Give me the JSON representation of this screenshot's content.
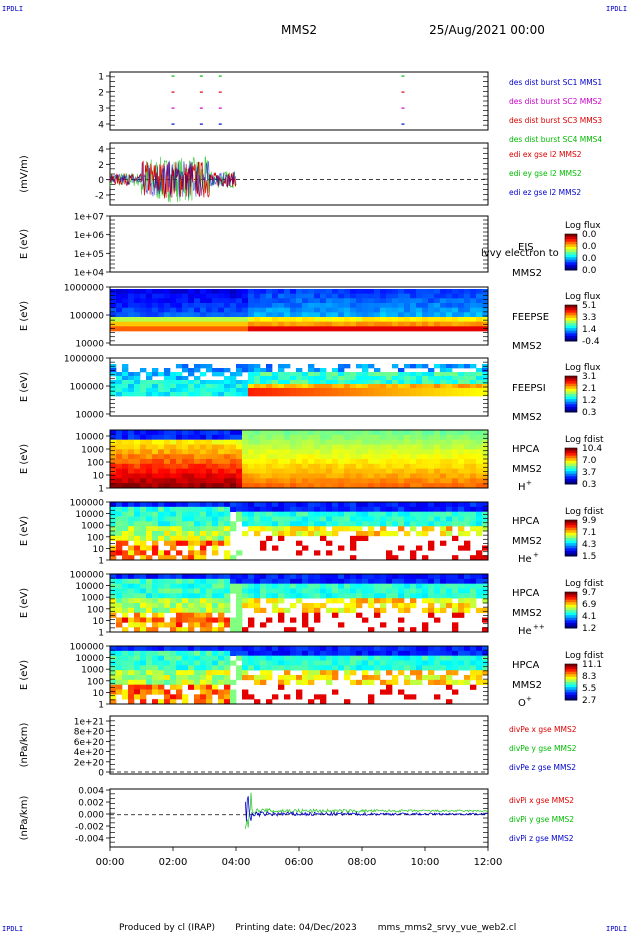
{
  "header": {
    "spacecraft": "MMS2",
    "datetime": "25/Aug/2021 00:00",
    "corner_mark": "IPDLI"
  },
  "footer": {
    "produced_by": "Produced by cl (IRAP)",
    "printing_date": "Printing date: 04/Dec/2023",
    "script_name": "mms_mms2_srvy_vue_web2.cl"
  },
  "time_axis": {
    "ticks": [
      "00:00",
      "02:00",
      "04:00",
      "06:00",
      "08:00",
      "10:00",
      "12:00"
    ],
    "range_hours": [
      0,
      12
    ]
  },
  "chart_data": [
    {
      "id": "burst",
      "type": "scatter",
      "ylim": [
        0.5,
        4.5
      ],
      "yticks": [
        "1",
        "2",
        "3",
        "4"
      ],
      "ylabel": "",
      "legend": [
        {
          "name": "des dist burst SC1 MMS1",
          "color": "#0000cc"
        },
        {
          "name": "des dist burst SC2 MMS2",
          "color": "#cc00cc"
        },
        {
          "name": "des dist burst SC3 MMS3",
          "color": "#dd0000"
        },
        {
          "name": "des dist burst SC4 MMS4",
          "color": "#00bb00"
        }
      ],
      "burst_times_h": [
        2.0,
        2.9,
        3.5,
        9.3
      ]
    },
    {
      "id": "efield",
      "type": "line",
      "ylim": [
        -3.5,
        5
      ],
      "yticks": [
        "4",
        "2",
        "0",
        "-2"
      ],
      "ylabel": "(mV/m)",
      "legend": [
        {
          "name": "edi ex gse l2 MMS2",
          "color": "#dd0000"
        },
        {
          "name": "edi ey gse l2 MMS2",
          "color": "#00bb00"
        },
        {
          "name": "edi ez gse l2 MMS2",
          "color": "#0000cc"
        }
      ],
      "data_span_h": [
        0,
        4.0
      ]
    },
    {
      "id": "eis",
      "type": "heatmap",
      "ylim": [
        "1e+04",
        "1e+07"
      ],
      "yticks": [
        "1e+07",
        "1e+06",
        "1e+05",
        "1e+04"
      ],
      "ylabel": "E (eV)",
      "labels": [
        "EIS",
        "MMS2"
      ],
      "overlay": "phxtof",
      "overlay2": "lvvy electron to",
      "cbar": {
        "title": "Log flux",
        "ticks": [
          "0.0",
          "0.0",
          "0.0",
          "0.0"
        ]
      }
    },
    {
      "id": "feeps_e",
      "type": "heatmap",
      "ylim": [
        10000,
        1000000
      ],
      "yticks": [
        "1000000",
        "100000",
        "10000"
      ],
      "ylabel": "E (eV)",
      "labels": [
        "FEEPSE",
        "MMS2"
      ],
      "cbar": {
        "title": "Log flux",
        "ticks": [
          "5.1",
          "3.3",
          "1.4",
          "-0.4"
        ]
      }
    },
    {
      "id": "feeps_i",
      "type": "heatmap",
      "ylim": [
        10000,
        1000000
      ],
      "yticks": [
        "1000000",
        "100000",
        "10000"
      ],
      "ylabel": "E (eV)",
      "labels": [
        "FEEPSI",
        "MMS2"
      ],
      "cbar": {
        "title": "Log flux",
        "ticks": [
          "3.1",
          "2.1",
          "1.2",
          "0.3"
        ]
      }
    },
    {
      "id": "hpca_h",
      "type": "heatmap",
      "ylim": [
        1,
        10000
      ],
      "yticks": [
        "10000",
        "1000",
        "100",
        "10",
        "1"
      ],
      "ylabel": "E (eV)",
      "labels": [
        "HPCA",
        "MMS2"
      ],
      "species": "H",
      "species_sup": "+",
      "cbar": {
        "title": "Log fdist",
        "ticks": [
          "10.4",
          "7.0",
          "3.7",
          "0.3"
        ]
      }
    },
    {
      "id": "hpca_he",
      "type": "heatmap",
      "ylim": [
        1,
        100000
      ],
      "yticks": [
        "100000",
        "10000",
        "1000",
        "100",
        "10",
        "1"
      ],
      "ylabel": "E (eV)",
      "labels": [
        "HPCA",
        "MMS2"
      ],
      "species": "He",
      "species_sup": "+",
      "cbar": {
        "title": "Log fdist",
        "ticks": [
          "9.9",
          "7.1",
          "4.3",
          "1.5"
        ]
      }
    },
    {
      "id": "hpca_he2",
      "type": "heatmap",
      "ylim": [
        1,
        100000
      ],
      "yticks": [
        "100000",
        "10000",
        "1000",
        "100",
        "10",
        "1"
      ],
      "ylabel": "E (eV)",
      "labels": [
        "HPCA",
        "MMS2"
      ],
      "species": "He",
      "species_sup": "++",
      "cbar": {
        "title": "Log fdist",
        "ticks": [
          "9.7",
          "6.9",
          "4.1",
          "1.2"
        ]
      }
    },
    {
      "id": "hpca_o",
      "type": "heatmap",
      "ylim": [
        1,
        100000
      ],
      "yticks": [
        "100000",
        "10000",
        "1000",
        "100",
        "10",
        "1"
      ],
      "ylabel": "E (eV)",
      "labels": [
        "HPCA",
        "MMS2"
      ],
      "species": "O",
      "species_sup": "+",
      "cbar": {
        "title": "Log fdist",
        "ticks": [
          "11.1",
          "8.3",
          "5.5",
          "2.7"
        ]
      }
    },
    {
      "id": "divpe",
      "type": "line",
      "ylim": [
        0,
        1.1e+21
      ],
      "yticks": [
        "1e+21",
        "8e+20",
        "6e+20",
        "4e+20",
        "2e+20",
        "0"
      ],
      "ylabel": "(nPa/km)",
      "legend": [
        {
          "name": "divPe x gse MMS2",
          "color": "#dd0000"
        },
        {
          "name": "divPe y gse MMS2",
          "color": "#00bb00"
        },
        {
          "name": "divPe z gse MMS2",
          "color": "#0000cc"
        }
      ]
    },
    {
      "id": "divpi",
      "type": "line",
      "ylim": [
        -0.005,
        0.004
      ],
      "yticks": [
        "0.004",
        "0.002",
        "0.000",
        "-0.002",
        "-0.004"
      ],
      "ylabel": "(nPa/km)",
      "legend": [
        {
          "name": "divPi x gse MMS2",
          "color": "#dd0000"
        },
        {
          "name": "divPi y gse MMS2",
          "color": "#00bb00"
        },
        {
          "name": "divPi z gse MMS2",
          "color": "#0000cc"
        }
      ],
      "data_span_h": [
        4.3,
        12.0
      ]
    }
  ]
}
